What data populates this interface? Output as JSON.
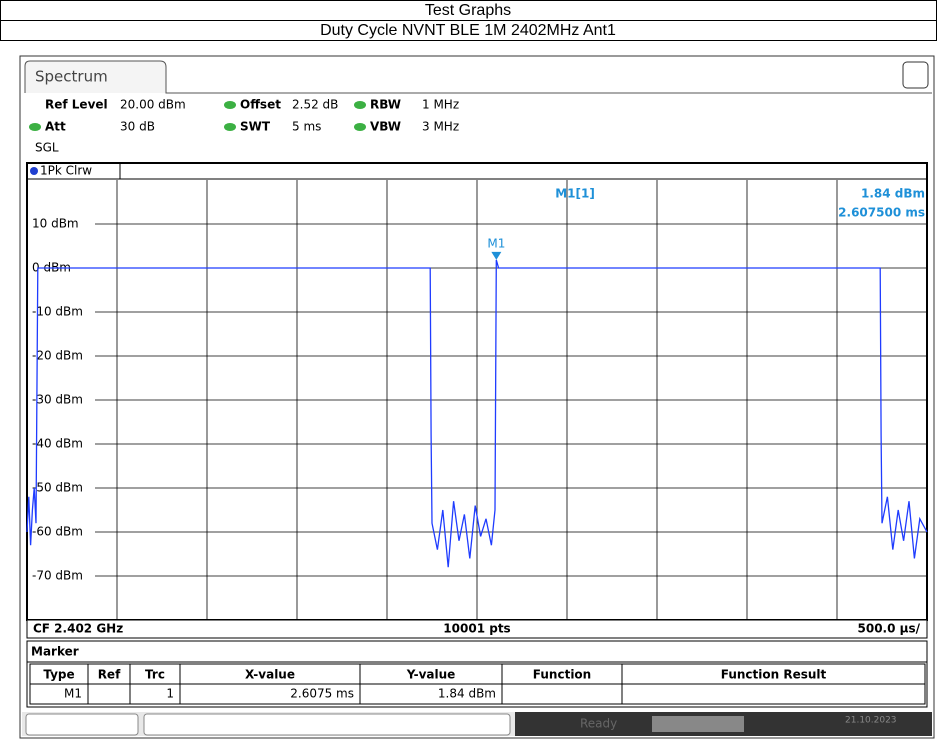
{
  "header": {
    "title": "Test Graphs",
    "subtitle": "Duty Cycle NVNT BLE 1M 2402MHz Ant1"
  },
  "tab": "Spectrum",
  "settings": [
    {
      "label": "Ref Level",
      "value": "20.00 dBm"
    },
    {
      "label": "Offset",
      "value": "2.52 dB"
    },
    {
      "label": "RBW",
      "value": "1 MHz"
    },
    {
      "label": "Att",
      "value": "30 dB"
    },
    {
      "label": "SWT",
      "value": "5 ms"
    },
    {
      "label": "VBW",
      "value": "3 MHz"
    }
  ],
  "mode": "SGL",
  "trace_label": "1Pk Clrw",
  "chart_data": {
    "type": "line",
    "x": [
      0,
      0.01,
      0.02,
      0.03,
      0.04,
      0.05,
      0.06,
      2.24,
      2.245,
      2.25,
      2.28,
      2.31,
      2.34,
      2.37,
      2.4,
      2.43,
      2.46,
      2.49,
      2.52,
      2.55,
      2.58,
      2.6,
      2.6075,
      2.62,
      4.74,
      4.745,
      4.75,
      4.78,
      4.81,
      4.84,
      4.87,
      4.9,
      4.93,
      4.96,
      5
    ],
    "values": [
      -60,
      -52,
      -63,
      -55,
      -50,
      -58,
      0,
      0,
      -38,
      -58,
      -64,
      -55,
      -68,
      -53,
      -62,
      -56,
      -66,
      -54,
      -61,
      -57,
      -63,
      -55,
      1.84,
      0,
      0,
      -38,
      -58,
      -52,
      -64,
      -55,
      -62,
      -53,
      -66,
      -57,
      -60
    ],
    "color": "#1f3cff",
    "xlim": [
      0,
      5
    ],
    "xticks": [
      0.5,
      1,
      1.5,
      2,
      2.5,
      3,
      3.5,
      4,
      4.5
    ],
    "ylim": [
      -80,
      20
    ],
    "yticks": [
      {
        "value": 10,
        "label": "10 dBm"
      },
      {
        "value": 0,
        "label": "0 dBm"
      },
      {
        "value": -10,
        "label": "-10 dBm"
      },
      {
        "value": -20,
        "label": "-20 dBm"
      },
      {
        "value": -30,
        "label": "-30 dBm"
      },
      {
        "value": -40,
        "label": "-40 dBm"
      },
      {
        "value": -50,
        "label": "-50 dBm"
      },
      {
        "value": -60,
        "label": "-60 dBm"
      },
      {
        "value": -70,
        "label": "-70 dBm"
      }
    ],
    "grid": true,
    "marker": {
      "name": "M1",
      "x": 2.6075,
      "y": 1.84,
      "color": "#1e90d8"
    },
    "readout": {
      "title": "M1[1]",
      "y_label": "1.84 dBm",
      "x_label": "2.607500 ms"
    },
    "footer": {
      "center_freq": "CF 2.402 GHz",
      "points": "10001 pts",
      "span": "500.0 µs/"
    }
  },
  "marker_table": {
    "title": "Marker",
    "columns": [
      "Type",
      "Ref",
      "Trc",
      "X-value",
      "Y-value",
      "Function",
      "Function Result"
    ],
    "row": {
      "type": "M1",
      "trc": "1",
      "x_value": "2.6075 ms",
      "y_value": "1.84 dBm"
    }
  },
  "status": {
    "state": "Ready",
    "date": "21.10.2023"
  }
}
